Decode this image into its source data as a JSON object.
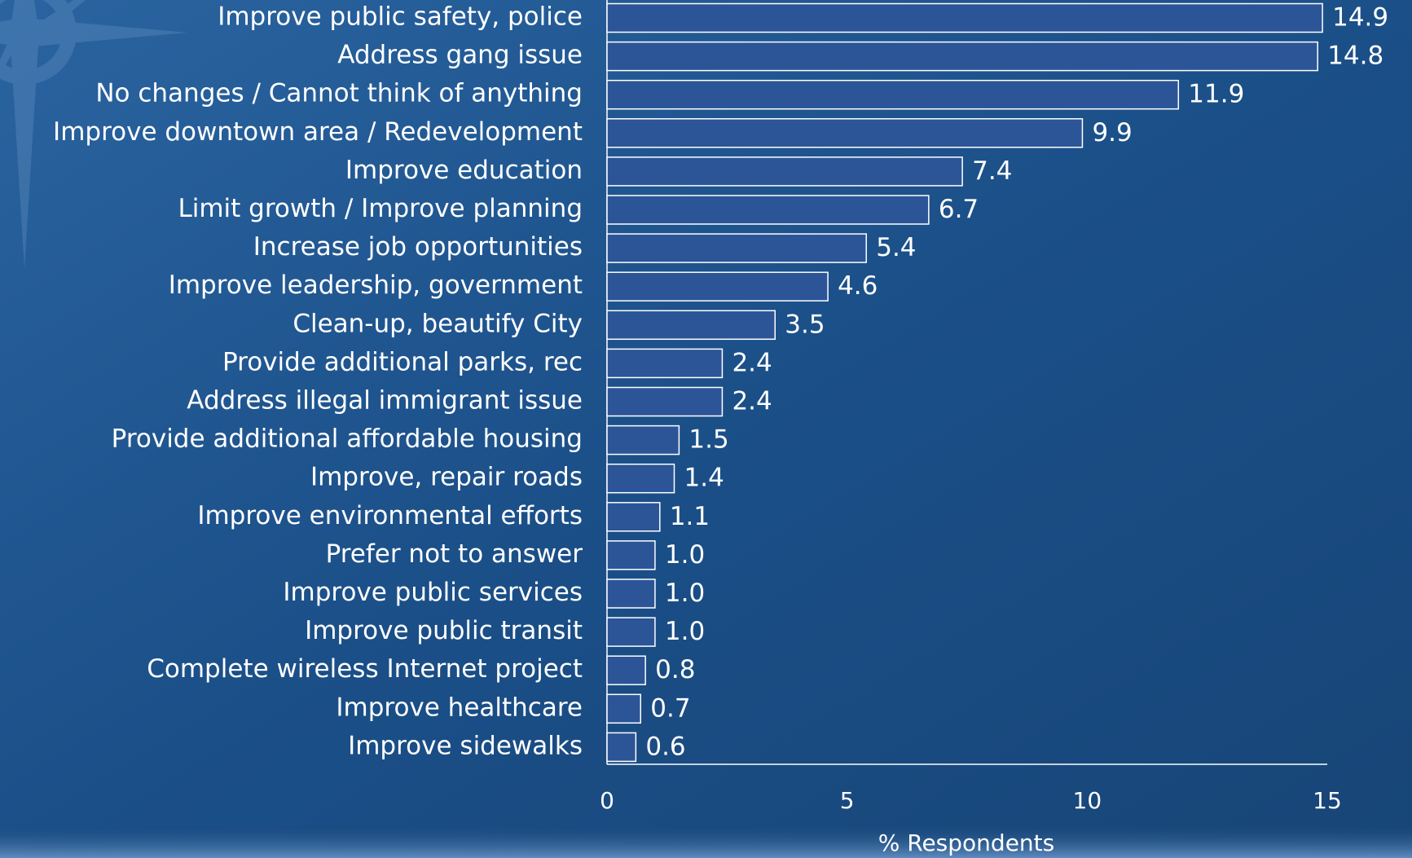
{
  "chart_data": {
    "type": "bar",
    "orientation": "horizontal",
    "categories": [
      "Improve public safety, police",
      "Address gang issue",
      "No changes / Cannot think of anything",
      "Improve downtown area / Redevelopment",
      "Improve education",
      "Limit growth / Improve planning",
      "Increase job opportunities",
      "Improve leadership, government",
      "Clean-up, beautify City",
      "Provide additional parks, rec",
      "Address illegal immigrant issue",
      "Provide additional affordable housing",
      "Improve, repair roads",
      "Improve environmental efforts",
      "Prefer not to answer",
      "Improve public services",
      "Improve public transit",
      "Complete wireless Internet project",
      "Improve healthcare",
      "Improve sidewalks"
    ],
    "values": [
      14.9,
      14.8,
      11.9,
      9.9,
      7.4,
      6.7,
      5.4,
      4.6,
      3.5,
      2.4,
      2.4,
      1.5,
      1.4,
      1.1,
      1.0,
      1.0,
      1.0,
      0.8,
      0.7,
      0.6
    ],
    "value_labels": [
      "14.9",
      "14.8",
      "11.9",
      "9.9",
      "7.4",
      "6.7",
      "5.4",
      "4.6",
      "3.5",
      "2.4",
      "2.4",
      "1.5",
      "1.4",
      "1.1",
      "1.0",
      "1.0",
      "1.0",
      "0.8",
      "0.7",
      "0.6"
    ],
    "color": "#2c5597",
    "xlim": [
      0,
      15
    ],
    "xticks": [
      0,
      5,
      10,
      15
    ],
    "xlabel": "% Respondents"
  }
}
